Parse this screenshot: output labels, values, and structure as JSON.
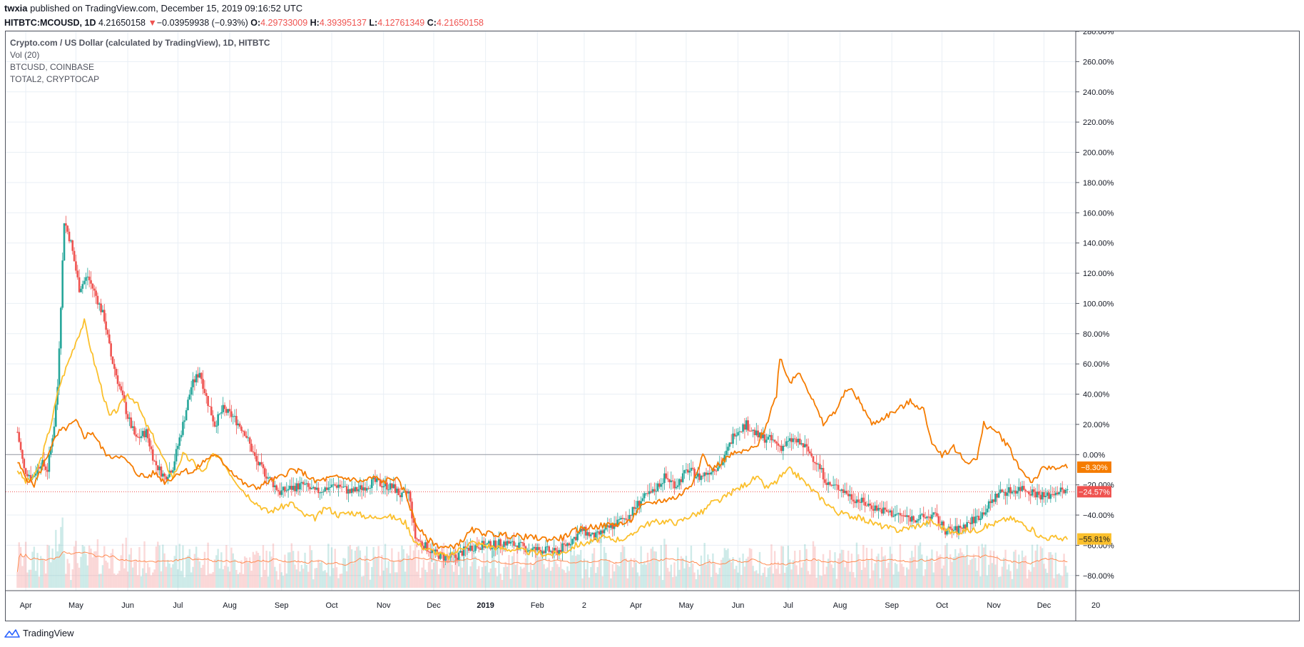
{
  "header": {
    "author": "twxia",
    "published_text": "published on TradingView.com, December 15, 2019 09:16:52 UTC",
    "symbol": "HITBTC:MCOUSD, 1D",
    "last_price": "4.21650158",
    "change_arrow": "▼",
    "change": "−0.03959938 (−0.93%)",
    "o_label": "O:",
    "o_value": "4.29733009",
    "h_label": "H:",
    "h_value": "4.39395137",
    "l_label": "L:",
    "l_value": "4.12761349",
    "c_label": "C:",
    "c_value": "4.21650158"
  },
  "legend": {
    "main": "Crypto.com / US Dollar (calculated by TradingView), 1D, HITBTC",
    "vol": "Vol (20)",
    "btc": "BTCUSD, COINBASE",
    "total2": "TOTAL2, CRYPTOCAP"
  },
  "footer": {
    "brand": "TradingView"
  },
  "colors": {
    "up": "#26a69a",
    "down": "#ef5350",
    "btc_line": "#f57c00",
    "total2_line": "#fbc02d",
    "vol_ma": "#ff8a50",
    "grid": "#e9eff5",
    "zero_line": "#9598a1"
  },
  "chart_data": {
    "type": "line",
    "y_unit": "%",
    "ylim": [
      -90,
      280
    ],
    "y_ticks": [
      "280.00%",
      "260.00%",
      "240.00%",
      "220.00%",
      "200.00%",
      "180.00%",
      "160.00%",
      "140.00%",
      "120.00%",
      "100.00%",
      "80.00%",
      "60.00%",
      "40.00%",
      "20.00%",
      "0.00%",
      "−20.00%",
      "−40.00%",
      "−60.00%",
      "−80.00%"
    ],
    "y_tick_values": [
      280,
      260,
      240,
      220,
      200,
      180,
      160,
      140,
      120,
      100,
      80,
      60,
      40,
      20,
      0,
      -20,
      -40,
      -60,
      -80
    ],
    "x_range": [
      "2018-03-20",
      "2019-12-20"
    ],
    "x_ticks": [
      {
        "label": "Apr",
        "date": "2018-04-01"
      },
      {
        "label": "May",
        "date": "2018-05-01"
      },
      {
        "label": "Jun",
        "date": "2018-06-01"
      },
      {
        "label": "Jul",
        "date": "2018-07-01"
      },
      {
        "label": "Aug",
        "date": "2018-08-01"
      },
      {
        "label": "Sep",
        "date": "2018-09-01"
      },
      {
        "label": "Oct",
        "date": "2018-10-01"
      },
      {
        "label": "Nov",
        "date": "2018-11-01"
      },
      {
        "label": "Dec",
        "date": "2018-12-01"
      },
      {
        "label": "2019",
        "date": "2019-01-01"
      },
      {
        "label": "Feb",
        "date": "2019-02-01"
      },
      {
        "label": "2",
        "date": "2019-03-01"
      },
      {
        "label": "Apr",
        "date": "2019-04-01"
      },
      {
        "label": "May",
        "date": "2019-05-01"
      },
      {
        "label": "Jun",
        "date": "2019-06-01"
      },
      {
        "label": "Jul",
        "date": "2019-07-01"
      },
      {
        "label": "Aug",
        "date": "2019-08-01"
      },
      {
        "label": "Sep",
        "date": "2019-09-01"
      },
      {
        "label": "Oct",
        "date": "2019-10-01"
      },
      {
        "label": "Nov",
        "date": "2019-11-01"
      },
      {
        "label": "Dec",
        "date": "2019-12-01"
      },
      {
        "label": "20",
        "date": "2020-01-01"
      }
    ],
    "last_labels": [
      {
        "text": "−8.30%",
        "value": -8.3,
        "color": "#f57c00"
      },
      {
        "text": "−24.57%",
        "value": -24.57,
        "color": "#ef5350"
      },
      {
        "text": "−55.81%",
        "value": -55.81,
        "color": "#fbc02d"
      }
    ],
    "series": [
      {
        "key": "mco",
        "x": [
          "2018-03-27",
          "2018-03-31",
          "2018-04-05",
          "2018-04-10",
          "2018-04-14",
          "2018-04-18",
          "2018-04-20",
          "2018-04-24",
          "2018-04-28",
          "2018-05-03",
          "2018-05-08",
          "2018-05-13",
          "2018-05-18",
          "2018-05-22",
          "2018-05-27",
          "2018-06-01",
          "2018-06-06",
          "2018-06-12",
          "2018-06-17",
          "2018-06-23",
          "2018-06-28",
          "2018-07-04",
          "2018-07-09",
          "2018-07-14",
          "2018-07-18",
          "2018-07-23",
          "2018-07-28",
          "2018-08-03",
          "2018-08-10",
          "2018-08-17",
          "2018-08-24",
          "2018-08-31",
          "2018-09-07",
          "2018-09-14",
          "2018-09-21",
          "2018-09-28",
          "2018-10-05",
          "2018-10-12",
          "2018-10-19",
          "2018-10-26",
          "2018-11-01",
          "2018-11-07",
          "2018-11-12",
          "2018-11-16",
          "2018-11-20",
          "2018-11-25",
          "2018-12-01",
          "2018-12-07",
          "2018-12-14",
          "2018-12-21",
          "2018-12-28",
          "2019-01-05",
          "2019-01-12",
          "2019-01-20",
          "2019-01-28",
          "2019-02-05",
          "2019-02-12",
          "2019-02-20",
          "2019-02-28",
          "2019-03-07",
          "2019-03-14",
          "2019-03-21",
          "2019-03-28",
          "2019-04-04",
          "2019-04-11",
          "2019-04-18",
          "2019-04-25",
          "2019-05-02",
          "2019-05-09",
          "2019-05-16",
          "2019-05-23",
          "2019-05-30",
          "2019-06-06",
          "2019-06-13",
          "2019-06-20",
          "2019-06-27",
          "2019-07-04",
          "2019-07-11",
          "2019-07-18",
          "2019-07-25",
          "2019-08-01",
          "2019-08-08",
          "2019-08-15",
          "2019-08-22",
          "2019-08-29",
          "2019-09-05",
          "2019-09-12",
          "2019-09-19",
          "2019-09-26",
          "2019-10-03",
          "2019-10-10",
          "2019-10-17",
          "2019-10-24",
          "2019-10-28",
          "2019-11-04",
          "2019-11-11",
          "2019-11-18",
          "2019-11-25",
          "2019-12-02",
          "2019-12-09",
          "2019-12-15"
        ],
        "y": [
          15,
          -10,
          -15,
          -5,
          -10,
          20,
          45,
          155,
          140,
          110,
          118,
          105,
          90,
          65,
          45,
          25,
          10,
          15,
          -5,
          -15,
          -8,
          20,
          45,
          55,
          38,
          20,
          30,
          25,
          15,
          -5,
          -15,
          -25,
          -22,
          -20,
          -25,
          -22,
          -20,
          -25,
          -22,
          -18,
          -20,
          -22,
          -28,
          -25,
          -55,
          -60,
          -65,
          -68,
          -68,
          -62,
          -60,
          -60,
          -58,
          -60,
          -63,
          -63,
          -65,
          -58,
          -50,
          -55,
          -50,
          -45,
          -40,
          -30,
          -25,
          -15,
          -20,
          -10,
          -15,
          -10,
          -5,
          15,
          20,
          12,
          10,
          5,
          10,
          5,
          -5,
          -20,
          -22,
          -28,
          -32,
          -35,
          -38,
          -40,
          -42,
          -42,
          -40,
          -50,
          -50,
          -45,
          -40,
          -35,
          -25,
          -24,
          -22,
          -25,
          -28,
          -24,
          -24.57
        ]
      },
      {
        "key": "btc",
        "x": [
          "2018-03-27",
          "2018-04-01",
          "2018-04-06",
          "2018-04-11",
          "2018-04-16",
          "2018-04-21",
          "2018-04-26",
          "2018-05-01",
          "2018-05-06",
          "2018-05-11",
          "2018-05-16",
          "2018-05-21",
          "2018-05-26",
          "2018-06-01",
          "2018-06-06",
          "2018-06-12",
          "2018-06-17",
          "2018-06-23",
          "2018-06-28",
          "2018-07-04",
          "2018-07-10",
          "2018-07-16",
          "2018-07-22",
          "2018-07-28",
          "2018-08-03",
          "2018-08-10",
          "2018-08-17",
          "2018-08-24",
          "2018-08-31",
          "2018-09-07",
          "2018-09-14",
          "2018-09-21",
          "2018-09-28",
          "2018-10-05",
          "2018-10-12",
          "2018-10-19",
          "2018-10-26",
          "2018-11-01",
          "2018-11-08",
          "2018-11-14",
          "2018-11-20",
          "2018-11-26",
          "2018-12-03",
          "2018-12-10",
          "2018-12-17",
          "2018-12-24",
          "2019-01-01",
          "2019-01-10",
          "2019-01-20",
          "2019-01-30",
          "2019-02-08",
          "2019-02-16",
          "2019-02-24",
          "2019-03-04",
          "2019-03-12",
          "2019-03-20",
          "2019-03-28",
          "2019-04-03",
          "2019-04-10",
          "2019-04-18",
          "2019-04-26",
          "2019-05-04",
          "2019-05-11",
          "2019-05-16",
          "2019-05-22",
          "2019-05-28",
          "2019-06-05",
          "2019-06-12",
          "2019-06-18",
          "2019-06-24",
          "2019-06-26",
          "2019-07-02",
          "2019-07-08",
          "2019-07-14",
          "2019-07-22",
          "2019-07-30",
          "2019-08-06",
          "2019-08-13",
          "2019-08-20",
          "2019-08-28",
          "2019-09-05",
          "2019-09-12",
          "2019-09-20",
          "2019-09-24",
          "2019-10-01",
          "2019-10-08",
          "2019-10-15",
          "2019-10-22",
          "2019-10-26",
          "2019-11-03",
          "2019-11-10",
          "2019-11-17",
          "2019-11-24",
          "2019-11-30",
          "2019-12-07",
          "2019-12-15"
        ],
        "y": [
          -5,
          -15,
          -20,
          -8,
          5,
          15,
          18,
          22,
          12,
          15,
          5,
          -2,
          0,
          -5,
          -12,
          -15,
          -12,
          -18,
          -15,
          -10,
          -12,
          -5,
          0,
          -5,
          -12,
          -20,
          -22,
          -18,
          -15,
          -10,
          -12,
          -18,
          -16,
          -15,
          -16,
          -18,
          -15,
          -18,
          -15,
          -25,
          -45,
          -55,
          -60,
          -62,
          -58,
          -50,
          -52,
          -53,
          -54,
          -55,
          -56,
          -55,
          -50,
          -48,
          -47,
          -46,
          -45,
          -35,
          -32,
          -30,
          -28,
          -20,
          0,
          -10,
          -5,
          0,
          2,
          5,
          20,
          40,
          65,
          48,
          55,
          40,
          20,
          30,
          45,
          35,
          20,
          25,
          30,
          35,
          30,
          10,
          0,
          5,
          -5,
          -3,
          20,
          15,
          5,
          -10,
          -18,
          -10,
          -8,
          -8.3
        ]
      },
      {
        "key": "total2",
        "x": [
          "2018-03-27",
          "2018-04-01",
          "2018-04-06",
          "2018-04-11",
          "2018-04-16",
          "2018-04-21",
          "2018-04-26",
          "2018-05-01",
          "2018-05-06",
          "2018-05-11",
          "2018-05-16",
          "2018-05-21",
          "2018-05-26",
          "2018-06-01",
          "2018-06-06",
          "2018-06-12",
          "2018-06-17",
          "2018-06-23",
          "2018-06-28",
          "2018-07-04",
          "2018-07-10",
          "2018-07-16",
          "2018-07-22",
          "2018-07-28",
          "2018-08-03",
          "2018-08-10",
          "2018-08-17",
          "2018-08-24",
          "2018-08-31",
          "2018-09-07",
          "2018-09-14",
          "2018-09-21",
          "2018-09-28",
          "2018-10-05",
          "2018-10-12",
          "2018-10-19",
          "2018-10-26",
          "2018-11-01",
          "2018-11-08",
          "2018-11-14",
          "2018-11-20",
          "2018-11-26",
          "2018-12-03",
          "2018-12-10",
          "2018-12-17",
          "2018-12-24",
          "2019-01-01",
          "2019-01-10",
          "2019-01-20",
          "2019-01-30",
          "2019-02-08",
          "2019-02-16",
          "2019-02-24",
          "2019-03-04",
          "2019-03-12",
          "2019-03-20",
          "2019-03-28",
          "2019-04-03",
          "2019-04-10",
          "2019-04-18",
          "2019-04-26",
          "2019-05-04",
          "2019-05-11",
          "2019-05-16",
          "2019-05-22",
          "2019-05-28",
          "2019-06-05",
          "2019-06-12",
          "2019-06-18",
          "2019-06-24",
          "2019-06-26",
          "2019-07-02",
          "2019-07-08",
          "2019-07-14",
          "2019-07-22",
          "2019-07-30",
          "2019-08-06",
          "2019-08-13",
          "2019-08-20",
          "2019-08-28",
          "2019-09-05",
          "2019-09-12",
          "2019-09-20",
          "2019-09-24",
          "2019-10-01",
          "2019-10-08",
          "2019-10-15",
          "2019-10-22",
          "2019-10-26",
          "2019-11-03",
          "2019-11-10",
          "2019-11-17",
          "2019-11-24",
          "2019-11-30",
          "2019-12-07",
          "2019-12-15"
        ],
        "y": [
          -10,
          -18,
          -15,
          0,
          20,
          45,
          60,
          75,
          88,
          65,
          45,
          25,
          30,
          40,
          35,
          20,
          10,
          -5,
          -15,
          0,
          -5,
          -12,
          0,
          -5,
          -15,
          -25,
          -32,
          -38,
          -35,
          -32,
          -40,
          -42,
          -35,
          -40,
          -38,
          -40,
          -42,
          -40,
          -42,
          -45,
          -58,
          -62,
          -65,
          -68,
          -62,
          -58,
          -60,
          -62,
          -63,
          -65,
          -66,
          -65,
          -60,
          -58,
          -55,
          -56,
          -55,
          -48,
          -45,
          -44,
          -45,
          -40,
          -38,
          -32,
          -30,
          -25,
          -20,
          -15,
          -22,
          -18,
          -15,
          -10,
          -15,
          -22,
          -30,
          -38,
          -40,
          -42,
          -45,
          -48,
          -50,
          -48,
          -46,
          -44,
          -48,
          -52,
          -50,
          -50,
          -48,
          -45,
          -42,
          -45,
          -50,
          -55,
          -55,
          -55.81
        ]
      }
    ]
  }
}
